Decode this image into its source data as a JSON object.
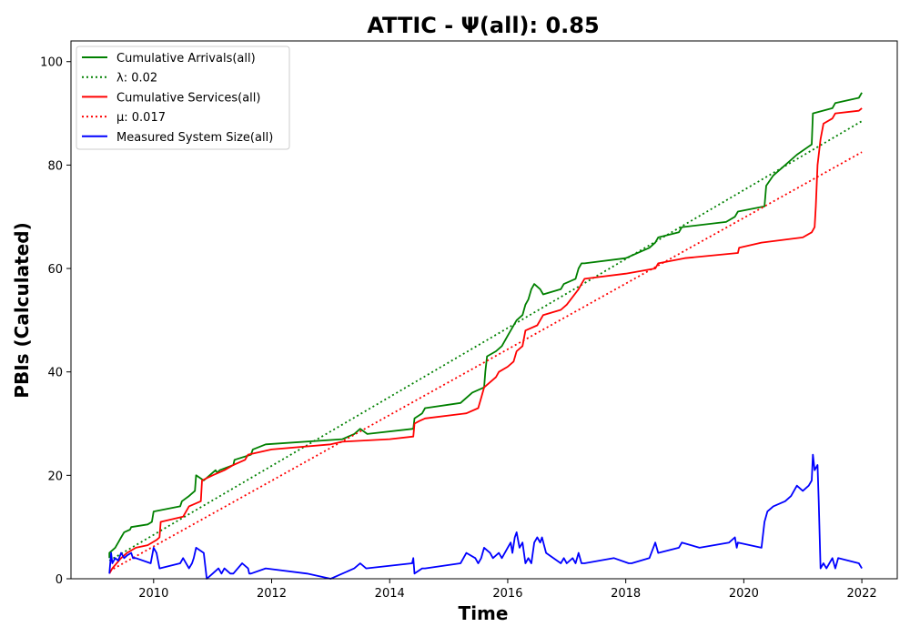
{
  "chart_data": {
    "type": "line",
    "title": "ATTIC -  Ψ(all): 0.85",
    "xlabel": "Time",
    "ylabel": "PBIs (Calculated)",
    "xlim": [
      2008.6,
      2022.6
    ],
    "ylim": [
      0,
      104
    ],
    "x_ticks": [
      2010,
      2012,
      2014,
      2016,
      2018,
      2020,
      2022
    ],
    "y_ticks": [
      0,
      20,
      40,
      60,
      80,
      100
    ],
    "x_tick_labels": [
      "2010",
      "2012",
      "2014",
      "2016",
      "2018",
      "2020",
      "2022"
    ],
    "y_tick_labels": [
      "0",
      "20",
      "40",
      "60",
      "80",
      "100"
    ],
    "grid": false,
    "legend_position": "top-left",
    "series": [
      {
        "name": "Cumulative Arrivals(all)",
        "color": "#008000",
        "style": "solid",
        "x": [
          2009.25,
          2009.25,
          2009.35,
          2009.4,
          2009.45,
          2009.5,
          2009.6,
          2009.62,
          2009.9,
          2009.97,
          2010.0,
          2010.45,
          2010.48,
          2010.6,
          2010.7,
          2010.72,
          2010.85,
          2010.95,
          2011.05,
          2011.08,
          2011.12,
          2011.35,
          2011.37,
          2011.65,
          2011.68,
          2011.9,
          2013.2,
          2013.4,
          2013.5,
          2013.62,
          2014.4,
          2014.42,
          2014.55,
          2014.6,
          2015.2,
          2015.4,
          2015.6,
          2015.62,
          2015.65,
          2015.8,
          2015.9,
          2016.0,
          2016.05,
          2016.15,
          2016.25,
          2016.3,
          2016.35,
          2016.4,
          2016.45,
          2016.55,
          2016.6,
          2016.9,
          2016.95,
          2017.15,
          2017.2,
          2017.25,
          2017.3,
          2018.0,
          2018.4,
          2018.5,
          2018.55,
          2018.9,
          2018.95,
          2019.7,
          2019.85,
          2019.9,
          2020.35,
          2020.38,
          2020.5,
          2020.7,
          2020.9,
          2021.15,
          2021.17,
          2021.5,
          2021.55,
          2021.95,
          2022.0
        ],
        "y": [
          4,
          5,
          6,
          7,
          8,
          9,
          9.5,
          10,
          10.5,
          11,
          13,
          14,
          15,
          16,
          17,
          20,
          19,
          20,
          21,
          20.5,
          21,
          22,
          23,
          24,
          25,
          26,
          27,
          28,
          29,
          28,
          29,
          31,
          32,
          33,
          34,
          36,
          37,
          40,
          43,
          44,
          45,
          47,
          48,
          50,
          51,
          53,
          54,
          56,
          57,
          56,
          55,
          56,
          57,
          58,
          60,
          61,
          61,
          62,
          64,
          65,
          66,
          67,
          68,
          69,
          70,
          71,
          72,
          76,
          78,
          80,
          82,
          84,
          90,
          91,
          92,
          93,
          94
        ]
      },
      {
        "name": "λ: 0.02",
        "color": "#008000",
        "style": "dotted",
        "x": [
          2009.25,
          2022.0
        ],
        "y": [
          3.5,
          88.5
        ]
      },
      {
        "name": "Cumulative Services(all)",
        "color": "#ff0000",
        "style": "solid",
        "x": [
          2009.25,
          2009.3,
          2009.45,
          2009.55,
          2009.7,
          2009.9,
          2010.05,
          2010.1,
          2010.12,
          2010.5,
          2010.55,
          2010.6,
          2010.8,
          2010.82,
          2011.0,
          2011.2,
          2011.35,
          2011.55,
          2011.6,
          2012.0,
          2013.0,
          2013.2,
          2014.0,
          2014.4,
          2014.42,
          2014.5,
          2014.6,
          2015.3,
          2015.5,
          2015.55,
          2015.6,
          2015.7,
          2015.8,
          2015.85,
          2016.0,
          2016.1,
          2016.15,
          2016.25,
          2016.3,
          2016.5,
          2016.55,
          2016.6,
          2016.9,
          2017.0,
          2017.2,
          2017.25,
          2017.3,
          2018.0,
          2018.5,
          2018.55,
          2019.0,
          2019.9,
          2019.92,
          2020.3,
          2021.0,
          2021.15,
          2021.2,
          2021.22,
          2021.25,
          2021.3,
          2021.35,
          2021.5,
          2021.55,
          2021.95,
          2022.0
        ],
        "y": [
          1,
          2,
          4,
          5,
          6,
          6.5,
          7.5,
          8,
          11,
          12,
          13,
          14,
          15,
          19,
          20,
          21,
          22,
          23,
          24,
          25,
          26,
          26.5,
          27,
          27.5,
          30,
          30.5,
          31,
          32,
          33,
          35,
          37,
          38,
          39,
          40,
          41,
          42,
          44,
          45,
          48,
          49,
          50,
          51,
          52,
          53,
          56,
          57,
          58,
          59,
          60,
          61,
          62,
          63,
          64,
          65,
          66,
          67,
          68,
          72,
          80,
          85,
          88,
          89,
          90,
          90.5,
          91
        ]
      },
      {
        "name": "μ: 0.017",
        "color": "#ff0000",
        "style": "dotted",
        "x": [
          2009.25,
          2022.0
        ],
        "y": [
          1.5,
          82.5
        ]
      },
      {
        "name": "Measured System Size(all)",
        "color": "#0000ff",
        "style": "solid",
        "x": [
          2009.25,
          2009.28,
          2009.3,
          2009.35,
          2009.4,
          2009.45,
          2009.5,
          2009.55,
          2009.62,
          2009.65,
          2009.7,
          2009.95,
          2010.0,
          2010.05,
          2010.1,
          2010.45,
          2010.5,
          2010.6,
          2010.65,
          2010.68,
          2010.72,
          2010.85,
          2010.9,
          2011.0,
          2011.1,
          2011.15,
          2011.2,
          2011.3,
          2011.35,
          2011.5,
          2011.6,
          2011.62,
          2011.65,
          2011.9,
          2012.6,
          2013.0,
          2013.4,
          2013.5,
          2013.6,
          2014.38,
          2014.4,
          2014.42,
          2014.55,
          2014.6,
          2015.2,
          2015.3,
          2015.45,
          2015.5,
          2015.55,
          2015.6,
          2015.7,
          2015.75,
          2015.85,
          2015.9,
          2016.0,
          2016.05,
          2016.08,
          2016.12,
          2016.15,
          2016.2,
          2016.25,
          2016.3,
          2016.35,
          2016.4,
          2016.45,
          2016.5,
          2016.55,
          2016.58,
          2016.65,
          2016.9,
          2016.95,
          2017.0,
          2017.1,
          2017.15,
          2017.2,
          2017.25,
          2017.3,
          2017.8,
          2018.05,
          2018.1,
          2018.4,
          2018.5,
          2018.55,
          2018.9,
          2018.95,
          2019.25,
          2019.75,
          2019.85,
          2019.88,
          2019.9,
          2020.3,
          2020.35,
          2020.4,
          2020.5,
          2020.7,
          2020.8,
          2020.9,
          2021.0,
          2021.1,
          2021.15,
          2021.17,
          2021.2,
          2021.25,
          2021.27,
          2021.3,
          2021.35,
          2021.4,
          2021.45,
          2021.5,
          2021.55,
          2021.6,
          2021.95,
          2022.0
        ],
        "y": [
          1,
          5,
          3,
          4,
          3.5,
          5,
          4,
          4.5,
          5,
          4,
          4,
          3,
          6,
          5,
          2,
          3,
          4,
          2,
          3,
          4,
          6,
          5,
          0,
          1,
          2,
          1,
          2,
          1,
          1,
          3,
          2,
          1,
          1,
          2,
          1,
          0,
          2,
          3,
          2,
          3,
          4,
          1,
          2,
          2,
          3,
          5,
          4,
          3,
          4,
          6,
          5,
          4,
          5,
          4,
          6,
          7,
          5,
          8,
          9,
          6,
          7,
          3,
          4,
          3,
          7,
          8,
          7,
          8,
          5,
          3,
          4,
          3,
          4,
          3,
          5,
          3,
          3,
          4,
          3,
          3,
          4,
          7,
          5,
          6,
          7,
          6,
          7,
          8,
          6,
          7,
          6,
          11,
          13,
          14,
          15,
          16,
          18,
          17,
          18,
          19,
          24,
          21,
          22,
          15,
          2,
          3,
          2,
          3,
          4,
          2,
          4,
          3,
          2
        ]
      }
    ]
  }
}
